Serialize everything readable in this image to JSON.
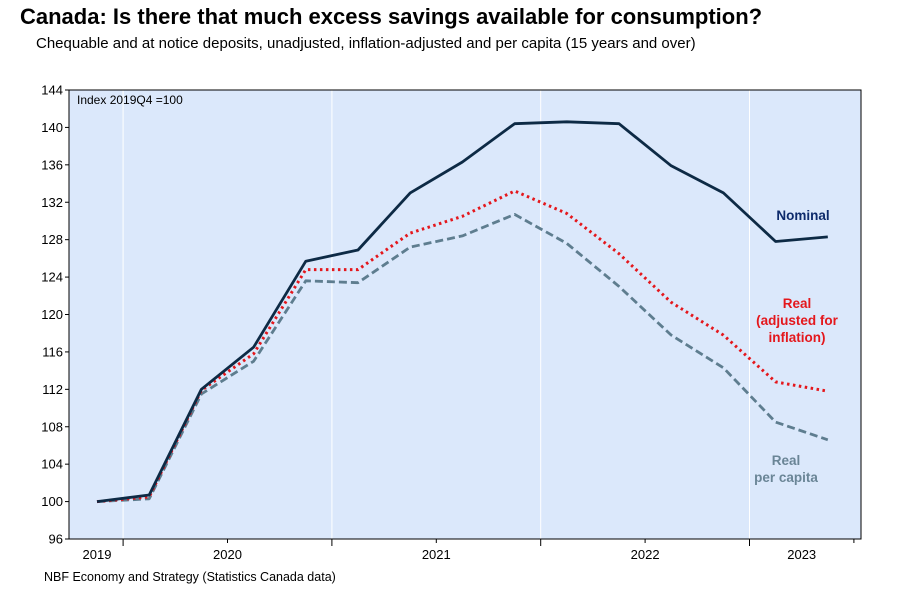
{
  "title": "Canada: Is there that much excess savings available for consumption?",
  "subtitle": "Chequable and at notice deposits, unadjusted, inflation-adjusted and per capita (15 years and over)",
  "source": "NBF Economy and Strategy (Statistics Canada data)",
  "colors": {
    "plot_bg": "#dbe8fb",
    "nominal": "#0d2a45",
    "real": "#e4171c",
    "real_per_capita": "#5e7d8f",
    "label_nominal": "#0d2a6b",
    "label_real": "#e4171c",
    "label_per_capita": "#6a8596"
  },
  "chart_data": {
    "type": "line",
    "title": "Canada: Is there that much excess savings available for consumption?",
    "annotation": "Index 2019Q4 =100",
    "x": [
      "2019Q4",
      "2020Q1",
      "2020Q2",
      "2020Q3",
      "2020Q4",
      "2021Q1",
      "2021Q2",
      "2021Q3",
      "2021Q4",
      "2022Q1",
      "2022Q2",
      "2022Q3",
      "2022Q4",
      "2023Q1",
      "2023Q2"
    ],
    "x_tick_labels": [
      "2019",
      "2020",
      "2021",
      "2022",
      "2023"
    ],
    "ylim": [
      96,
      144
    ],
    "yticks": [
      96,
      100,
      104,
      108,
      112,
      116,
      120,
      124,
      128,
      132,
      136,
      140,
      144
    ],
    "grid": "vertical",
    "series": [
      {
        "name": "Nominal",
        "style": "solid",
        "label_lines": [
          "Nominal"
        ],
        "values": [
          100.0,
          100.7,
          112.0,
          116.5,
          125.7,
          126.9,
          133.0,
          136.3,
          140.4,
          140.6,
          140.4,
          135.9,
          133.0,
          127.8,
          128.3
        ]
      },
      {
        "name": "Real (adjusted for inflation)",
        "style": "dotted",
        "label_lines": [
          "Real",
          "(adjusted for",
          "inflation)"
        ],
        "values": [
          100.0,
          100.5,
          111.9,
          115.8,
          124.8,
          124.8,
          128.7,
          130.5,
          133.2,
          130.8,
          126.5,
          121.3,
          117.8,
          112.8,
          111.8
        ]
      },
      {
        "name": "Real per capita",
        "style": "dashed",
        "label_lines": [
          "Real",
          "per capita"
        ],
        "values": [
          100.0,
          100.3,
          111.5,
          115.0,
          123.6,
          123.4,
          127.2,
          128.4,
          130.7,
          127.6,
          123.0,
          117.8,
          114.3,
          108.5,
          106.6
        ]
      }
    ]
  }
}
